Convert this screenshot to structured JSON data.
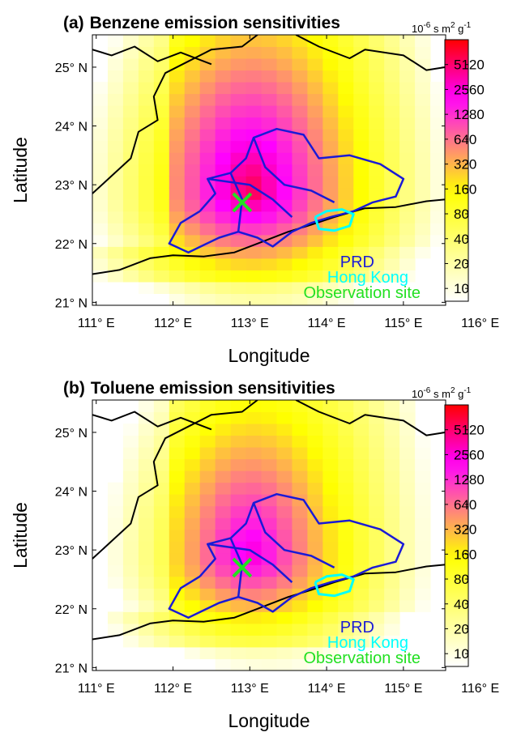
{
  "colors": {
    "prd": "#1a1ad6",
    "hong_kong": "#00ffff",
    "observation_site": "#22e022",
    "coastline": "#000000",
    "colormap": [
      "#ffffff",
      "#ffff00",
      "#ff00ff",
      "#ff0000"
    ]
  },
  "chart_data": [
    {
      "type": "heatmap",
      "panel_label": "(a)",
      "title": "Benzene emission sensitivities",
      "xlabel": "Longitude",
      "ylabel": "Latitude",
      "xlim": [
        110.95,
        115.55
      ],
      "ylim": [
        20.95,
        25.55
      ],
      "xticks": [
        {
          "value": 111,
          "label": "111° E"
        },
        {
          "value": 112,
          "label": "112° E"
        },
        {
          "value": 113,
          "label": "113° E"
        },
        {
          "value": 114,
          "label": "114° E"
        },
        {
          "value": 115,
          "label": "115° E"
        },
        {
          "value": 116,
          "label": "116° E"
        }
      ],
      "yticks": [
        {
          "value": 21,
          "label": "21° N"
        },
        {
          "value": 22,
          "label": "22° N"
        },
        {
          "value": 23,
          "label": "23° N"
        },
        {
          "value": 24,
          "label": "24° N"
        },
        {
          "value": 25,
          "label": "25° N"
        }
      ],
      "colorbar": {
        "unit_base": "10",
        "unit_exp": "-6",
        "unit_mid": " s m",
        "unit_exp2": "2",
        "unit_tail": " g",
        "unit_exp3": "-1",
        "scale": "log2",
        "range": [
          7,
          10240
        ],
        "ticks": [
          10,
          20,
          40,
          80,
          160,
          320,
          640,
          1280,
          2560,
          5120
        ]
      },
      "grid": {
        "lon_start": 110.95,
        "lat_start": 20.95,
        "cell": 0.2,
        "hotspot": [
          113.0,
          22.9
        ],
        "peak": 6500
      },
      "observation_site": {
        "lon": 112.9,
        "lat": 22.7
      },
      "legend": [
        "PRD",
        "Hong Kong",
        "Observation site"
      ]
    },
    {
      "type": "heatmap",
      "panel_label": "(b)",
      "title": "Toluene emission sensitivities",
      "xlabel": "Longitude",
      "ylabel": "Latitude",
      "xlim": [
        110.95,
        115.55
      ],
      "ylim": [
        20.95,
        25.55
      ],
      "xticks": [
        {
          "value": 111,
          "label": "111° E"
        },
        {
          "value": 112,
          "label": "112° E"
        },
        {
          "value": 113,
          "label": "113° E"
        },
        {
          "value": 114,
          "label": "114° E"
        },
        {
          "value": 115,
          "label": "115° E"
        },
        {
          "value": 116,
          "label": "116° E"
        }
      ],
      "yticks": [
        {
          "value": 21,
          "label": "21° N"
        },
        {
          "value": 22,
          "label": "22° N"
        },
        {
          "value": 23,
          "label": "23° N"
        },
        {
          "value": 24,
          "label": "24° N"
        },
        {
          "value": 25,
          "label": "25° N"
        }
      ],
      "colorbar": {
        "unit_base": "10",
        "unit_exp": "-6",
        "unit_mid": " s m",
        "unit_exp2": "2",
        "unit_tail": " g",
        "unit_exp3": "-1",
        "scale": "log2",
        "range": [
          7,
          10240
        ],
        "ticks": [
          10,
          20,
          40,
          80,
          160,
          320,
          640,
          1280,
          2560,
          5120
        ]
      },
      "grid": {
        "lon_start": 110.95,
        "lat_start": 20.95,
        "cell": 0.2,
        "hotspot": [
          113.0,
          22.9
        ],
        "peak": 3000
      },
      "observation_site": {
        "lon": 112.9,
        "lat": 22.7
      },
      "legend": [
        "PRD",
        "Hong Kong",
        "Observation site"
      ]
    }
  ]
}
